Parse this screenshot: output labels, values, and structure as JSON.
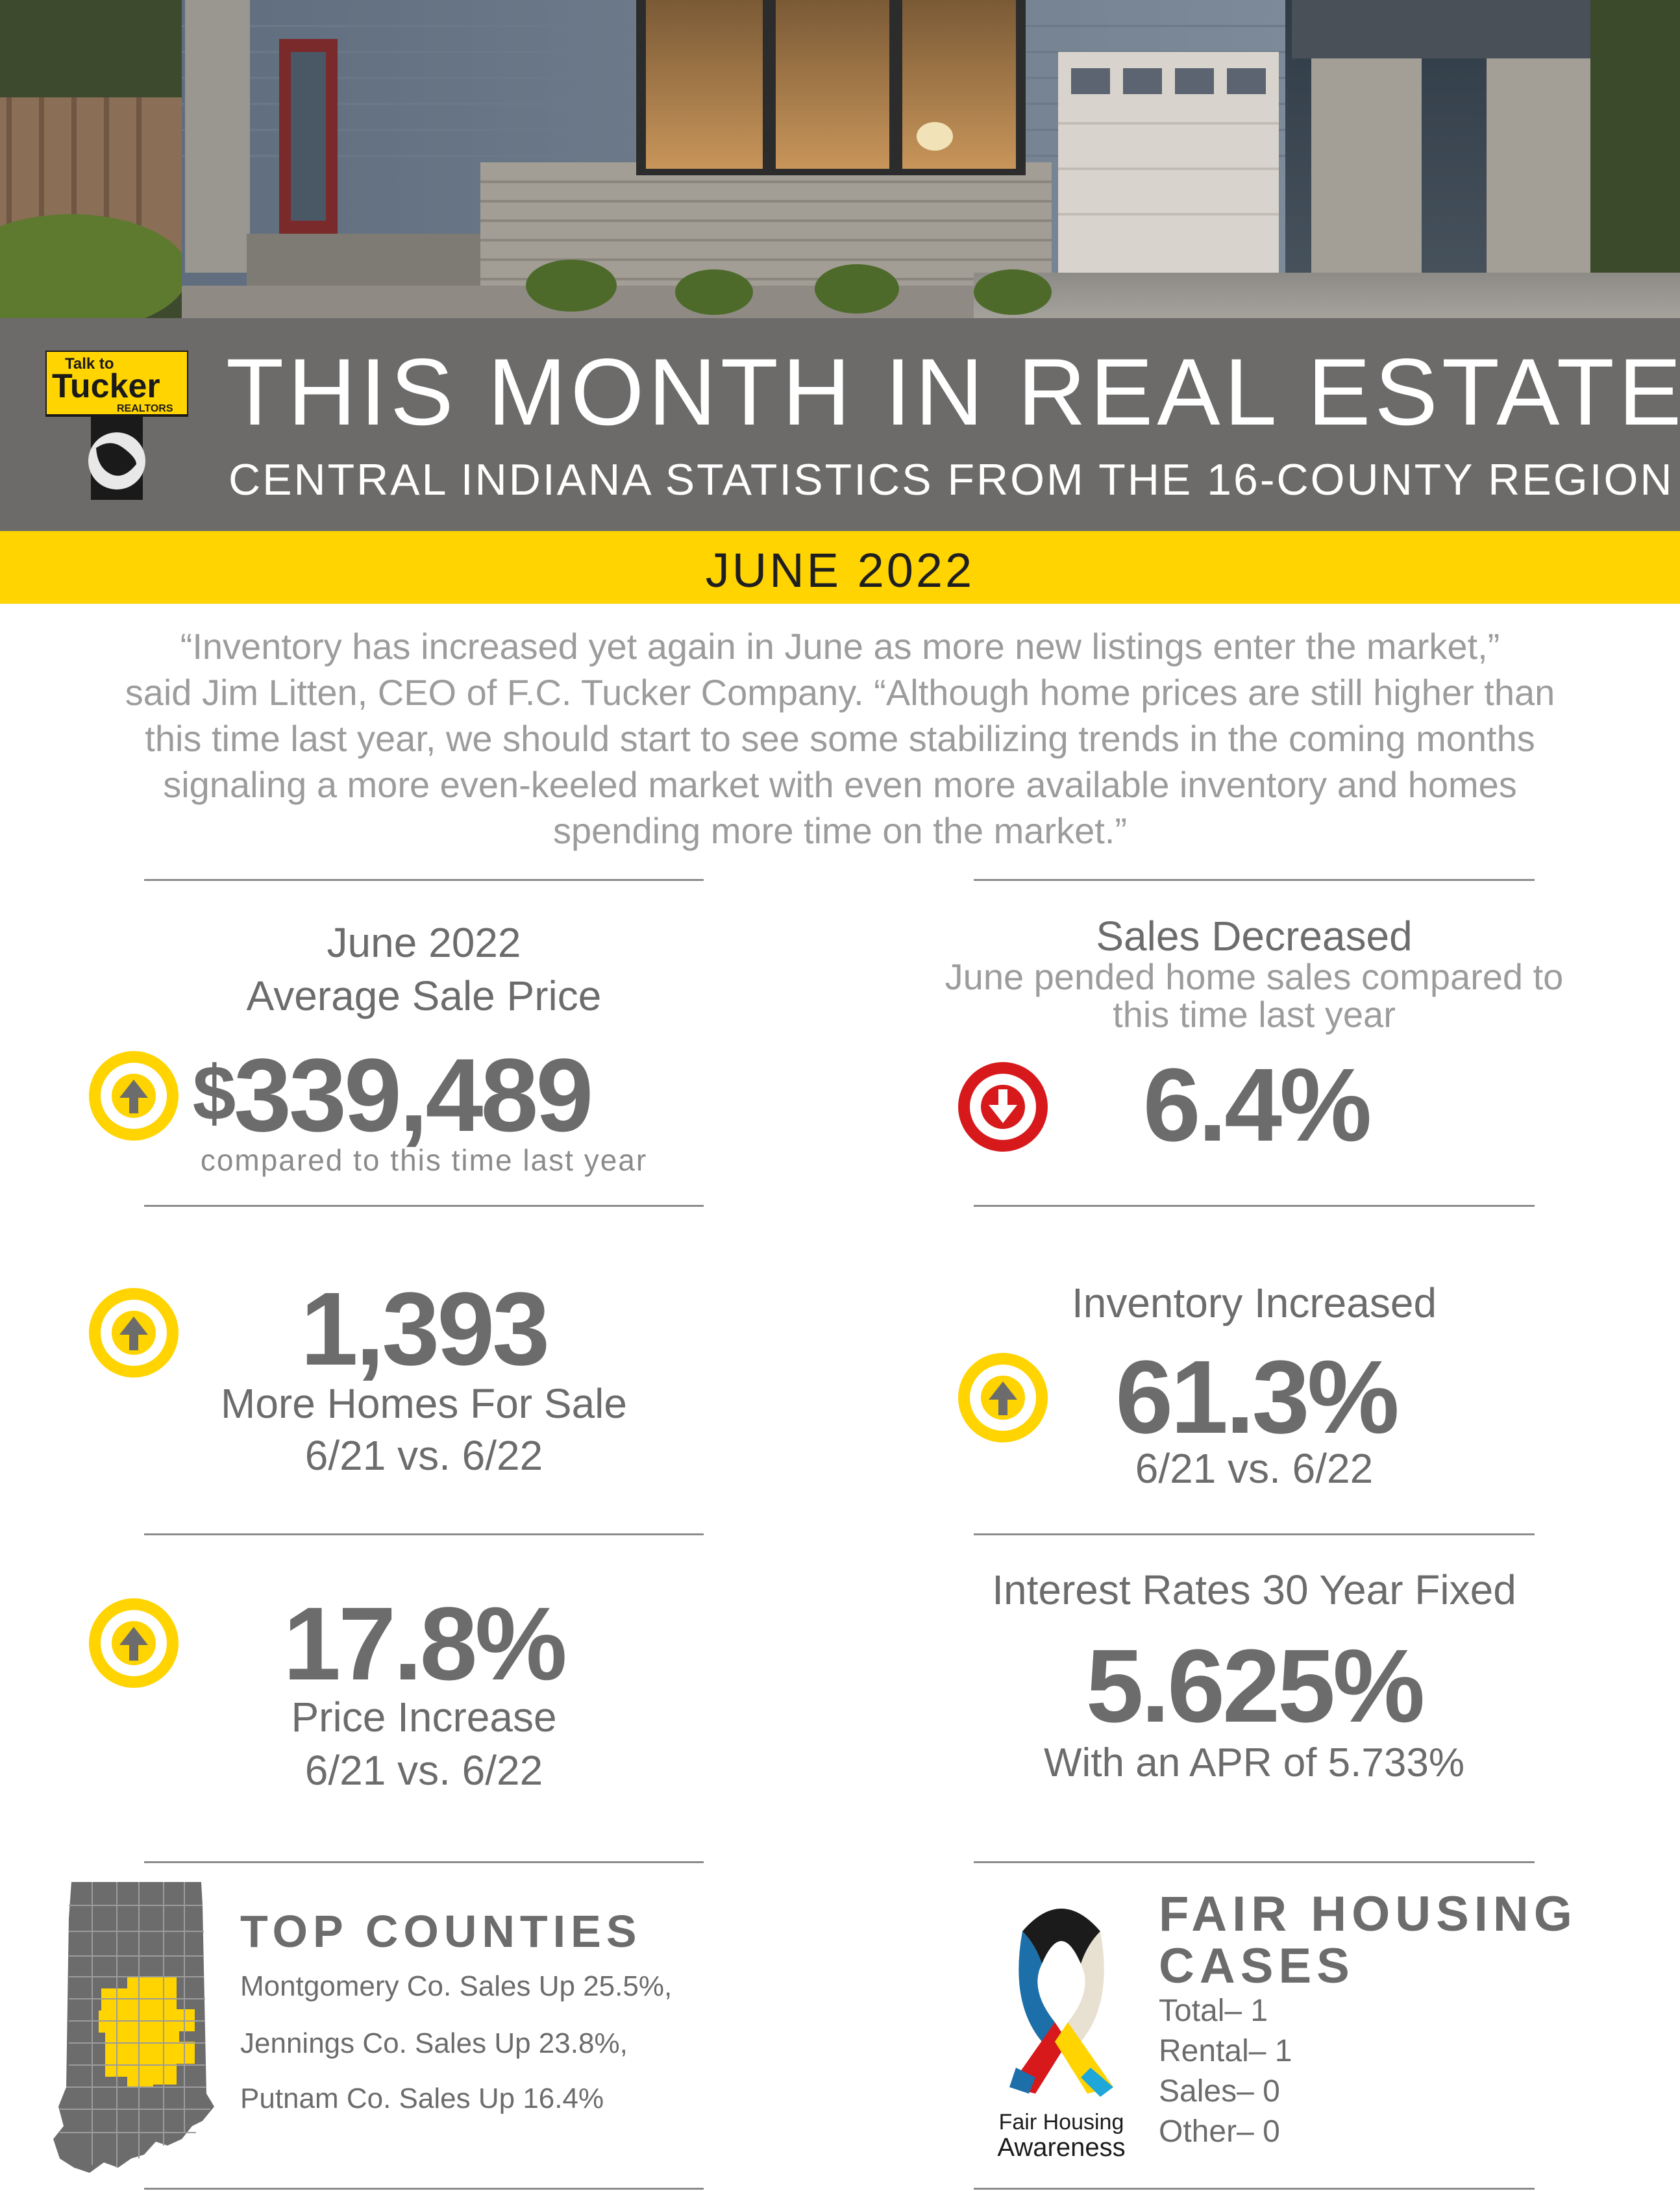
{
  "header": {
    "title": "THIS MONTH IN REAL ESTATE",
    "subtitle": "CENTRAL INDIANA STATISTICS FROM THE 16-COUNTY REGION",
    "date": "JUNE 2022",
    "logo_text": [
      "Talk to",
      "Tucker",
      "REALTORS"
    ]
  },
  "quote": {
    "lines": [
      "“Inventory has increased yet again in June as more new listings enter the market,”",
      "said Jim Litten, CEO of F.C. Tucker Company. “Although home prices are still higher than",
      "this time last year, we should start to see some stabilizing trends in the coming months",
      "signaling a more even-keeled market with even more available inventory and homes",
      "spending more time on the market.”"
    ]
  },
  "stats": {
    "avg_price": {
      "line1": "June 2022",
      "line2": "Average Sale Price",
      "currency": "$",
      "value": "339,489",
      "note": "compared to this time last year",
      "trend": "up"
    },
    "sales": {
      "title": "Sales Decreased",
      "sub1": "June pended home sales compared to",
      "sub2": "this time last year",
      "value": "6.4%",
      "trend": "down"
    },
    "homes": {
      "value": "1,393",
      "label": "More Homes For Sale",
      "period": "6/21 vs. 6/22",
      "trend": "up"
    },
    "inventory": {
      "title": "Inventory Increased",
      "value": "61.3%",
      "period": "6/21 vs. 6/22",
      "trend": "up"
    },
    "price_increase": {
      "value": "17.8%",
      "label": "Price Increase",
      "period": "6/21 vs. 6/22",
      "trend": "up"
    },
    "interest": {
      "title": "Interest Rates 30 Year Fixed",
      "value": "5.625%",
      "apr": "With an APR of 5.733%"
    }
  },
  "top_counties": {
    "heading": "TOP COUNTIES",
    "items": [
      "Montgomery Co. Sales Up 25.5%,",
      "Jennings Co. Sales Up 23.8%,",
      "Putnam Co. Sales Up 16.4%"
    ]
  },
  "fair_housing": {
    "heading1": "FAIR HOUSING",
    "heading2": "CASES",
    "items": [
      "Total– 1",
      "Rental– 1",
      "Sales– 0",
      "Other– 0"
    ],
    "ribbon_text1": "Fair Housing",
    "ribbon_text2": "Awareness"
  },
  "colors": {
    "gray_band": "#6d6b6a",
    "yellow": "#ffd400",
    "text_gray": "#6d6c6c",
    "quote_gray": "#9d9c9c",
    "down_red": "#d7191c"
  },
  "icons": [
    "up-arrow-circle-icon",
    "down-arrow-circle-icon",
    "indiana-map-icon",
    "awareness-ribbon-icon"
  ]
}
